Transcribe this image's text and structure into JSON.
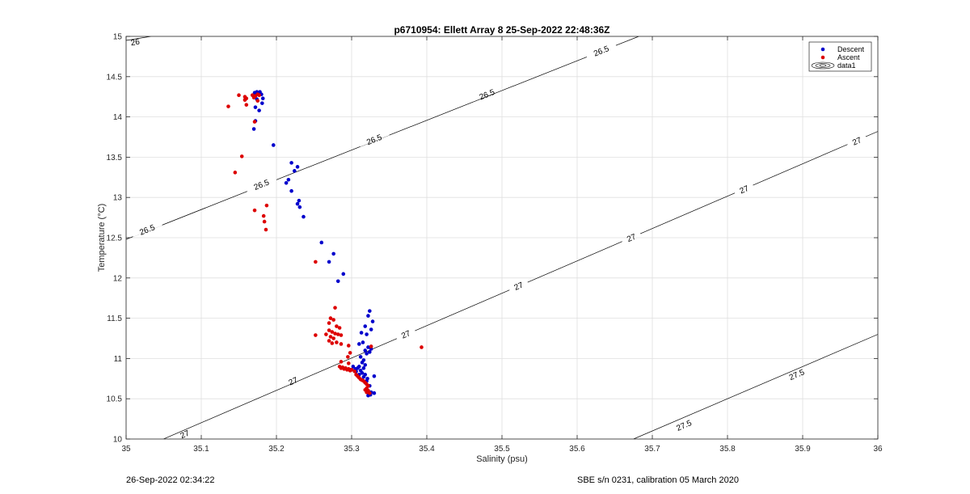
{
  "chart_data": {
    "type": "scatter",
    "title": "p6710954: Ellett Array 8 25-Sep-2022 22:48:36Z",
    "xlabel": "Salinity (psu)",
    "ylabel": "Temperature (°C)",
    "xlim": [
      35,
      36
    ],
    "ylim": [
      10,
      15
    ],
    "xticks": [
      "35",
      "35.1",
      "35.2",
      "35.3",
      "35.4",
      "35.5",
      "35.6",
      "35.7",
      "35.8",
      "35.9",
      "36"
    ],
    "yticks": [
      "10",
      "10.5",
      "11",
      "11.5",
      "12",
      "12.5",
      "13",
      "13.5",
      "14",
      "14.5",
      "15"
    ],
    "grid": true,
    "legend_position": "top-right",
    "series": [
      {
        "name": "Descent",
        "color": "#0000cc",
        "points": [
          [
            35.171,
            14.3
          ],
          [
            35.174,
            14.31
          ],
          [
            35.176,
            14.29
          ],
          [
            35.178,
            14.31
          ],
          [
            35.18,
            14.28
          ],
          [
            35.182,
            14.23
          ],
          [
            35.174,
            14.22
          ],
          [
            35.172,
            14.12
          ],
          [
            35.181,
            14.17
          ],
          [
            35.177,
            14.08
          ],
          [
            35.172,
            13.95
          ],
          [
            35.17,
            13.85
          ],
          [
            35.196,
            13.65
          ],
          [
            35.22,
            13.43
          ],
          [
            35.228,
            13.38
          ],
          [
            35.224,
            13.33
          ],
          [
            35.216,
            13.22
          ],
          [
            35.213,
            13.18
          ],
          [
            35.22,
            13.08
          ],
          [
            35.23,
            12.96
          ],
          [
            35.228,
            12.92
          ],
          [
            35.231,
            12.88
          ],
          [
            35.236,
            12.76
          ],
          [
            35.26,
            12.44
          ],
          [
            35.276,
            12.3
          ],
          [
            35.27,
            12.2
          ],
          [
            35.289,
            12.05
          ],
          [
            35.282,
            11.96
          ],
          [
            35.324,
            11.59
          ],
          [
            35.322,
            11.53
          ],
          [
            35.328,
            11.46
          ],
          [
            35.318,
            11.4
          ],
          [
            35.326,
            11.36
          ],
          [
            35.32,
            11.3
          ],
          [
            35.313,
            11.32
          ],
          [
            35.315,
            11.2
          ],
          [
            35.31,
            11.18
          ],
          [
            35.322,
            11.14
          ],
          [
            35.326,
            11.12
          ],
          [
            35.318,
            11.1
          ],
          [
            35.324,
            11.08
          ],
          [
            35.32,
            11.06
          ],
          [
            35.312,
            11.02
          ],
          [
            35.316,
            10.98
          ],
          [
            35.314,
            10.95
          ],
          [
            35.318,
            10.92
          ],
          [
            35.31,
            10.9
          ],
          [
            35.316,
            10.88
          ],
          [
            35.305,
            10.87
          ],
          [
            35.3,
            10.86
          ],
          [
            35.312,
            10.85
          ],
          [
            35.306,
            10.84
          ],
          [
            35.314,
            10.82
          ],
          [
            35.318,
            10.8
          ],
          [
            35.31,
            10.8
          ],
          [
            35.316,
            10.77
          ],
          [
            35.321,
            10.75
          ],
          [
            35.32,
            10.72
          ],
          [
            35.318,
            10.7
          ],
          [
            35.33,
            10.78
          ],
          [
            35.324,
            10.66
          ],
          [
            35.32,
            10.62
          ],
          [
            35.322,
            10.6
          ],
          [
            35.326,
            10.58
          ],
          [
            35.33,
            10.57
          ],
          [
            35.325,
            10.55
          ],
          [
            35.322,
            10.54
          ],
          [
            35.308,
            10.88
          ],
          [
            35.302,
            10.9
          ],
          [
            35.298,
            10.86
          ]
        ]
      },
      {
        "name": "Ascent",
        "color": "#dd0000",
        "points": [
          [
            35.136,
            14.13
          ],
          [
            35.15,
            14.27
          ],
          [
            35.158,
            14.25
          ],
          [
            35.16,
            14.23
          ],
          [
            35.158,
            14.21
          ],
          [
            35.168,
            14.27
          ],
          [
            35.17,
            14.24
          ],
          [
            35.172,
            14.26
          ],
          [
            35.175,
            14.28
          ],
          [
            35.177,
            14.27
          ],
          [
            35.16,
            14.15
          ],
          [
            35.175,
            14.2
          ],
          [
            35.171,
            13.94
          ],
          [
            35.154,
            13.51
          ],
          [
            35.145,
            13.31
          ],
          [
            35.171,
            12.84
          ],
          [
            35.187,
            12.9
          ],
          [
            35.183,
            12.77
          ],
          [
            35.184,
            12.7
          ],
          [
            35.186,
            12.6
          ],
          [
            35.252,
            12.2
          ],
          [
            35.278,
            11.63
          ],
          [
            35.272,
            11.5
          ],
          [
            35.276,
            11.48
          ],
          [
            35.27,
            11.44
          ],
          [
            35.28,
            11.4
          ],
          [
            35.284,
            11.38
          ],
          [
            35.27,
            11.35
          ],
          [
            35.274,
            11.33
          ],
          [
            35.278,
            11.31
          ],
          [
            35.266,
            11.3
          ],
          [
            35.282,
            11.3
          ],
          [
            35.286,
            11.29
          ],
          [
            35.272,
            11.27
          ],
          [
            35.276,
            11.25
          ],
          [
            35.252,
            11.29
          ],
          [
            35.27,
            11.22
          ],
          [
            35.28,
            11.2
          ],
          [
            35.274,
            11.19
          ],
          [
            35.286,
            11.18
          ],
          [
            35.296,
            11.16
          ],
          [
            35.326,
            11.15
          ],
          [
            35.393,
            11.14
          ],
          [
            35.298,
            11.07
          ],
          [
            35.295,
            11.02
          ],
          [
            35.284,
            10.9
          ],
          [
            35.286,
            10.88
          ],
          [
            35.288,
            10.89
          ],
          [
            35.29,
            10.87
          ],
          [
            35.292,
            10.88
          ],
          [
            35.294,
            10.86
          ],
          [
            35.296,
            10.87
          ],
          [
            35.298,
            10.85
          ],
          [
            35.3,
            10.86
          ],
          [
            35.304,
            10.84
          ],
          [
            35.306,
            10.8
          ],
          [
            35.308,
            10.78
          ],
          [
            35.31,
            10.76
          ],
          [
            35.312,
            10.74
          ],
          [
            35.314,
            10.73
          ],
          [
            35.316,
            10.72
          ],
          [
            35.318,
            10.7
          ],
          [
            35.32,
            10.68
          ],
          [
            35.322,
            10.66
          ],
          [
            35.32,
            10.63
          ],
          [
            35.318,
            10.61
          ],
          [
            35.322,
            10.6
          ],
          [
            35.32,
            10.58
          ],
          [
            35.324,
            10.57
          ],
          [
            35.286,
            10.96
          ],
          [
            35.296,
            10.94
          ]
        ]
      }
    ],
    "contours": {
      "legend_name": "data1",
      "lines": [
        {
          "level": "26",
          "points": [
            [
              35.0,
              14.95
            ],
            [
              35.033,
              15.0
            ]
          ],
          "labels": [
            [
              35.012,
              14.93
            ]
          ]
        },
        {
          "level": "26.5",
          "points": [
            [
              35.0,
              12.48
            ],
            [
              35.682,
              15.0
            ]
          ],
          "labels": [
            [
              35.028,
              12.6
            ],
            [
              35.18,
              13.16
            ],
            [
              35.33,
              13.72
            ],
            [
              35.48,
              14.28
            ],
            [
              35.632,
              14.82
            ]
          ]
        },
        {
          "level": "27",
          "points": [
            [
              35.0,
              9.8
            ],
            [
              36.0,
              13.82
            ]
          ],
          "labels": [
            [
              35.078,
              10.06
            ],
            [
              35.222,
              10.72
            ],
            [
              35.372,
              11.3
            ],
            [
              35.522,
              11.9
            ],
            [
              35.672,
              12.5
            ],
            [
              35.822,
              13.1
            ],
            [
              35.972,
              13.7
            ]
          ]
        },
        {
          "level": "27.5",
          "points": [
            [
              35.675,
              10.0
            ],
            [
              36.0,
              11.3
            ]
          ],
          "labels": [
            [
              35.742,
              10.17
            ],
            [
              35.892,
              10.8
            ]
          ]
        }
      ]
    }
  },
  "footer": {
    "left": "26-Sep-2022 02:34:22",
    "right": "SBE s/n 0231, calibration 05 March 2020"
  }
}
